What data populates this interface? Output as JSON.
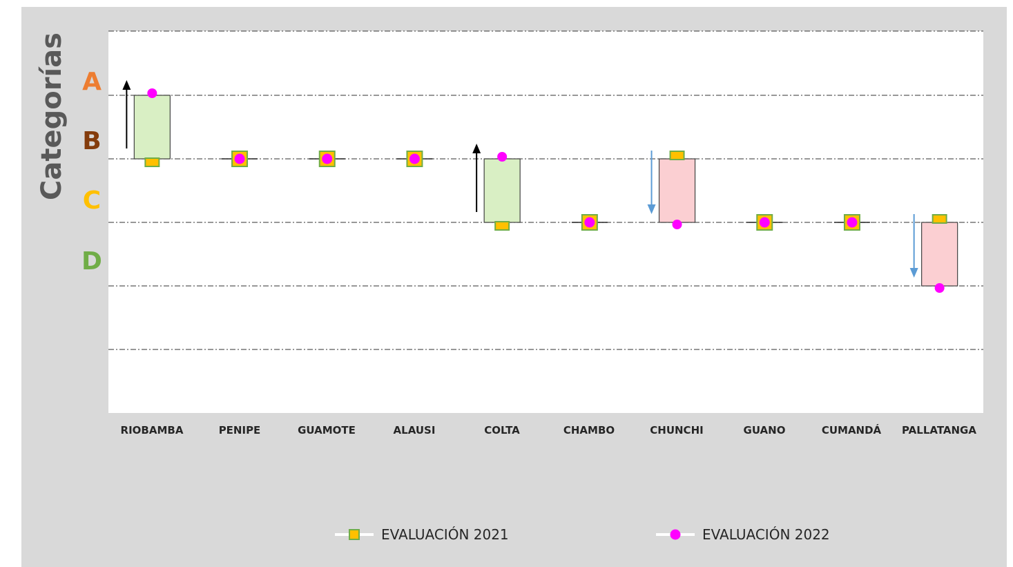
{
  "chart_data": {
    "type": "scatter",
    "ylabel": "Categorías",
    "category_levels": [
      "A",
      "B",
      "C",
      "D"
    ],
    "category_colors": {
      "A": "#ed7d31",
      "B": "#843c0c",
      "C": "#ffc000",
      "D": "#70ad47"
    },
    "categories": [
      "RIOBAMBA",
      "PENIPE",
      "GUAMOTE",
      "ALAUSI",
      "COLTA",
      "CHAMBO",
      "CHUNCHI",
      "GUANO",
      "CUMANDÁ",
      "PALLATANGA"
    ],
    "series": [
      {
        "name": "EVALUACIÓN 2021",
        "marker": "square",
        "fill": "#ffc000",
        "stroke": "#70ad47",
        "values": [
          "B",
          "B",
          "B",
          "B",
          "C",
          "C",
          "B",
          "C",
          "C",
          "C"
        ]
      },
      {
        "name": "EVALUACIÓN 2022",
        "marker": "circle",
        "fill": "#ff00ff",
        "values": [
          "A",
          "B",
          "B",
          "B",
          "B",
          "C",
          "C",
          "C",
          "C",
          "D"
        ]
      }
    ],
    "change_colors": {
      "up_fill": "#d9efc4",
      "down_fill": "#fbcfd2",
      "up_arrow": "#000000",
      "down_arrow": "#5b9bd5"
    },
    "grid": true
  }
}
